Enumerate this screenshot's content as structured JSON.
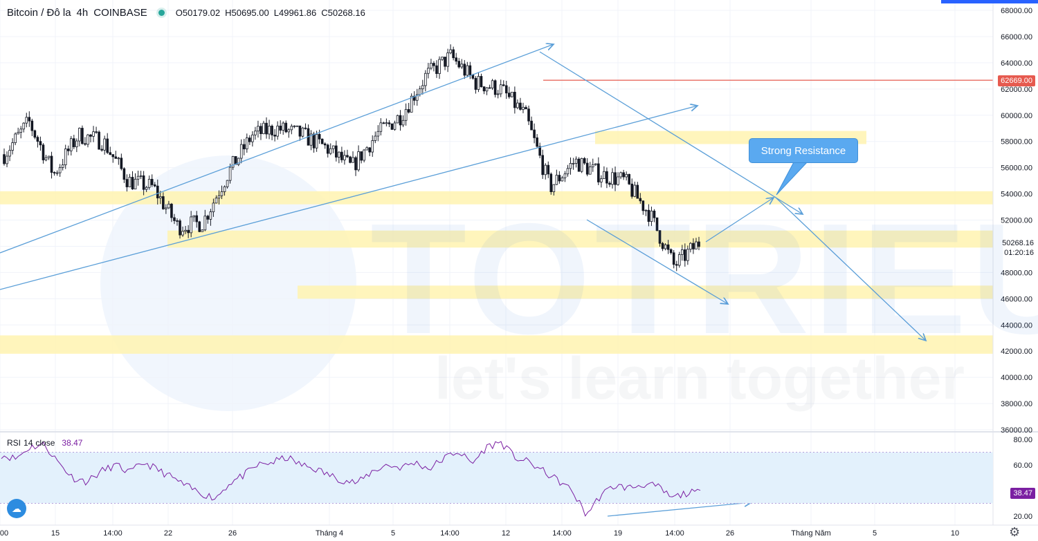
{
  "header": {
    "symbol": "Bitcoin / Đô la",
    "interval": "4h",
    "exchange": "COINBASE",
    "open_label": "O",
    "open": "50179.02",
    "high_label": "H",
    "high": "50695.00",
    "low_label": "L",
    "low": "49961.86",
    "close_label": "C",
    "close": "50268.16"
  },
  "watermark": {
    "brand": "TOTRIEU",
    "tagline": "let's learn together"
  },
  "annotation": {
    "callout": "Strong Resistance"
  },
  "price_axis": {
    "ticks": [
      "68000.00",
      "66000.00",
      "64000.00",
      "62000.00",
      "60000.00",
      "58000.00",
      "56000.00",
      "54000.00",
      "52000.00",
      "48000.00",
      "46000.00",
      "44000.00",
      "42000.00",
      "40000.00",
      "38000.00",
      "36000.00"
    ],
    "resistance_tag": "62669.00",
    "last_price": "50268.16",
    "countdown": "01:20:16"
  },
  "rsi": {
    "title": "RSI",
    "length": "14",
    "source": "close",
    "value": "38.47",
    "ticks": [
      "80.00",
      "60.00",
      "20.00"
    ]
  },
  "time_axis": {
    "labels": [
      "00",
      "15",
      "14:00",
      "22",
      "26",
      "Tháng 4",
      "5",
      "14:00",
      "12",
      "14:00",
      "19",
      "14:00",
      "26",
      "Tháng Năm",
      "5",
      "10"
    ]
  },
  "colors": {
    "up": "#ffffff",
    "down": "#131722",
    "trendline": "#5b9fd8",
    "zone": "#fff3b0",
    "resistance": "#e65a4f",
    "rsi_line": "#7b1fa2",
    "rsi_band": "#e3f1fc"
  },
  "chart_data": [
    {
      "type": "candlestick",
      "title": "Bitcoin / Đô la, 4h, COINBASE",
      "ylim": [
        36000,
        68000
      ],
      "points": [
        {
          "x": "14 Mar",
          "y": 57000
        },
        {
          "x": "15 Mar",
          "y": 59500
        },
        {
          "x": "16 Mar",
          "y": 55500
        },
        {
          "x": "18 Mar",
          "y": 58500
        },
        {
          "x": "20 Mar",
          "y": 58000
        },
        {
          "x": "22 Mar",
          "y": 55000
        },
        {
          "x": "24 Mar",
          "y": 54500
        },
        {
          "x": "25 Mar",
          "y": 51500
        },
        {
          "x": "26 Mar",
          "y": 51800
        },
        {
          "x": "28 Mar",
          "y": 55500
        },
        {
          "x": "30 Mar",
          "y": 58500
        },
        {
          "x": "1 Apr",
          "y": 59000
        },
        {
          "x": "3 Apr",
          "y": 58500
        },
        {
          "x": "5 Apr",
          "y": 57500
        },
        {
          "x": "7 Apr",
          "y": 56000
        },
        {
          "x": "9 Apr",
          "y": 58500
        },
        {
          "x": "11 Apr",
          "y": 60000
        },
        {
          "x": "13 Apr",
          "y": 63000
        },
        {
          "x": "14 Apr",
          "y": 64500
        },
        {
          "x": "15 Apr",
          "y": 62500
        },
        {
          "x": "16 Apr",
          "y": 62000
        },
        {
          "x": "17 Apr",
          "y": 60000
        },
        {
          "x": "18 Apr",
          "y": 54500
        },
        {
          "x": "19 Apr",
          "y": 56500
        },
        {
          "x": "20 Apr",
          "y": 55500
        },
        {
          "x": "21 Apr",
          "y": 55000
        },
        {
          "x": "22 Apr",
          "y": 52500
        },
        {
          "x": "23 Apr",
          "y": 48500
        },
        {
          "x": "24 Apr",
          "y": 50268
        }
      ],
      "resistance_line": 62669,
      "zones": [
        [
          53200,
          54200
        ],
        [
          49900,
          51200
        ],
        [
          46000,
          47000
        ],
        [
          41800,
          43200
        ],
        [
          57800,
          58800
        ]
      ]
    },
    {
      "type": "line",
      "title": "RSI 14 close",
      "ylim": [
        10,
        82
      ],
      "band": [
        30,
        70
      ],
      "series": [
        {
          "name": "RSI",
          "values": [
            68,
            65,
            74,
            76,
            62,
            50,
            47,
            55,
            60,
            54,
            62,
            56,
            50,
            43,
            38,
            34,
            46,
            52,
            60,
            62,
            66,
            60,
            57,
            52,
            48,
            46,
            55,
            60,
            58,
            62,
            57,
            65,
            71,
            61,
            74,
            78,
            66,
            62,
            55,
            48,
            40,
            21,
            36,
            44,
            42,
            45,
            43,
            34,
            38,
            38.47
          ]
        }
      ]
    }
  ]
}
